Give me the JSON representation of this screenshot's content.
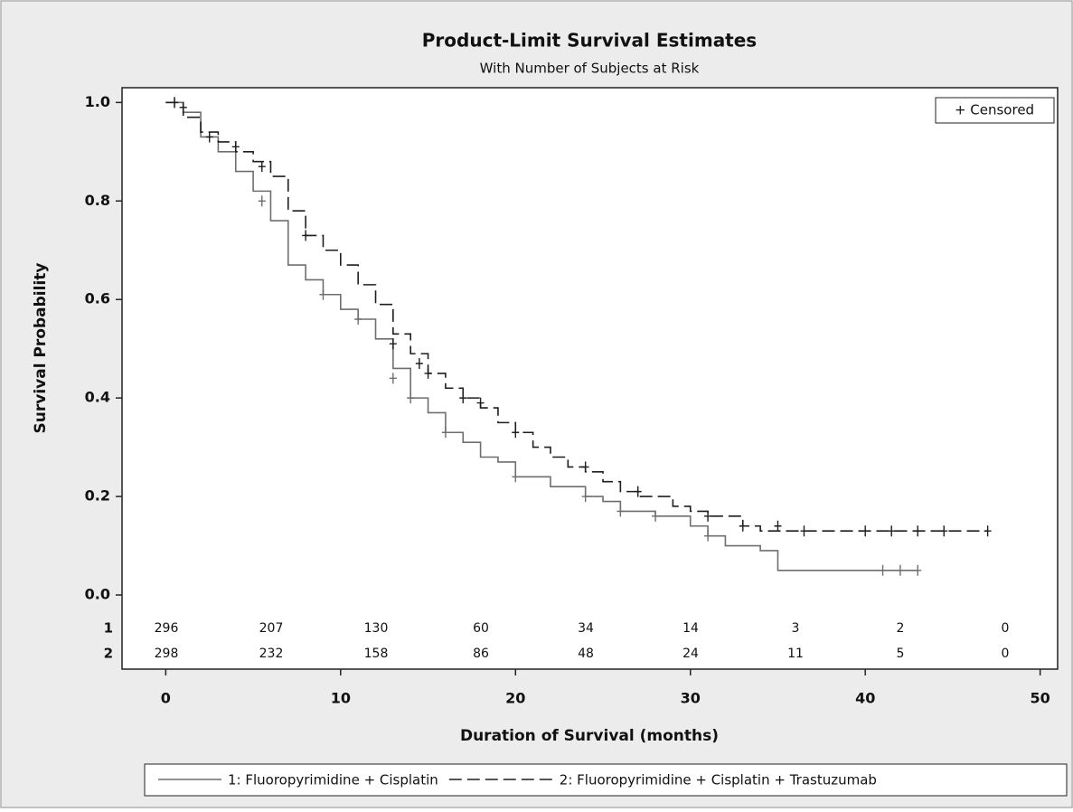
{
  "chart_data": {
    "type": "step",
    "title": "Product-Limit Survival Estimates",
    "subtitle": "With Number of Subjects at Risk",
    "x_label": "Duration of Survival (months)",
    "y_label": "Survival Probability",
    "xlim": [
      -2.5,
      51
    ],
    "ylim": [
      0,
      1.03
    ],
    "xticks": [
      0,
      10,
      20,
      30,
      40,
      50
    ],
    "yticks": [
      {
        "value": 0,
        "label": "0.0"
      },
      {
        "value": 0.2,
        "label": "0.2"
      },
      {
        "value": 0.4,
        "label": "0.4"
      },
      {
        "value": 0.6,
        "label": "0.6"
      },
      {
        "value": 0.8,
        "label": "0.8"
      },
      {
        "value": 1,
        "label": "1.0"
      }
    ],
    "censor_legend": "+ Censored",
    "series": [
      {
        "name": "1: Fluoropyrimidine + Cisplatin",
        "color": "#6e6e6e",
        "dash": "none",
        "x": [
          0,
          1,
          2,
          3,
          4,
          5,
          6,
          7,
          8,
          9,
          10,
          11,
          12,
          13,
          14,
          15,
          16,
          17,
          18,
          19,
          20,
          22,
          24,
          25,
          26,
          28,
          30,
          31,
          32,
          34,
          35,
          43
        ],
        "values": [
          1.0,
          0.98,
          0.93,
          0.9,
          0.86,
          0.82,
          0.76,
          0.67,
          0.64,
          0.61,
          0.58,
          0.56,
          0.52,
          0.46,
          0.4,
          0.37,
          0.33,
          0.31,
          0.28,
          0.27,
          0.24,
          0.22,
          0.2,
          0.19,
          0.17,
          0.16,
          0.14,
          0.12,
          0.1,
          0.09,
          0.05,
          0.05
        ],
        "censored_x": [
          0.5,
          1,
          5.5,
          9,
          11,
          13,
          14,
          16,
          20,
          24,
          26,
          28,
          31,
          41,
          42,
          43
        ],
        "censored_values": [
          1.0,
          0.99,
          0.8,
          0.61,
          0.56,
          0.44,
          0.4,
          0.33,
          0.24,
          0.2,
          0.17,
          0.16,
          0.12,
          0.05,
          0.05,
          0.05
        ]
      },
      {
        "name": "2: Fluoropyrimidine + Cisplatin + Trastuzumab",
        "color": "#1e1e1e",
        "dash": "14,6",
        "x": [
          0,
          1,
          2,
          3,
          4,
          5,
          6,
          7,
          8,
          9,
          10,
          11,
          12,
          13,
          14,
          15,
          16,
          17,
          18,
          19,
          20,
          21,
          22,
          23,
          24,
          25,
          26,
          27,
          29,
          30,
          31,
          33,
          34,
          47
        ],
        "values": [
          1.0,
          0.97,
          0.94,
          0.92,
          0.9,
          0.88,
          0.85,
          0.78,
          0.73,
          0.7,
          0.67,
          0.63,
          0.59,
          0.53,
          0.49,
          0.45,
          0.42,
          0.4,
          0.38,
          0.35,
          0.33,
          0.3,
          0.28,
          0.26,
          0.25,
          0.23,
          0.21,
          0.2,
          0.18,
          0.17,
          0.16,
          0.14,
          0.13,
          0.13
        ],
        "censored_x": [
          0.5,
          1,
          2.5,
          4,
          5.5,
          8,
          13,
          14.5,
          15,
          17,
          18,
          20,
          24,
          27,
          31,
          33,
          35,
          36.5,
          40,
          41.5,
          43,
          44.5,
          47
        ],
        "censored_values": [
          1.0,
          0.99,
          0.93,
          0.91,
          0.87,
          0.73,
          0.51,
          0.47,
          0.45,
          0.4,
          0.39,
          0.33,
          0.26,
          0.21,
          0.16,
          0.14,
          0.14,
          0.13,
          0.13,
          0.13,
          0.13,
          0.13,
          0.13
        ]
      }
    ],
    "risk_table": [
      {
        "label": "1",
        "values": [
          296,
          207,
          130,
          60,
          34,
          14,
          3,
          2,
          0
        ]
      },
      {
        "label": "2",
        "values": [
          298,
          232,
          158,
          86,
          48,
          24,
          11,
          5,
          0
        ]
      }
    ]
  }
}
